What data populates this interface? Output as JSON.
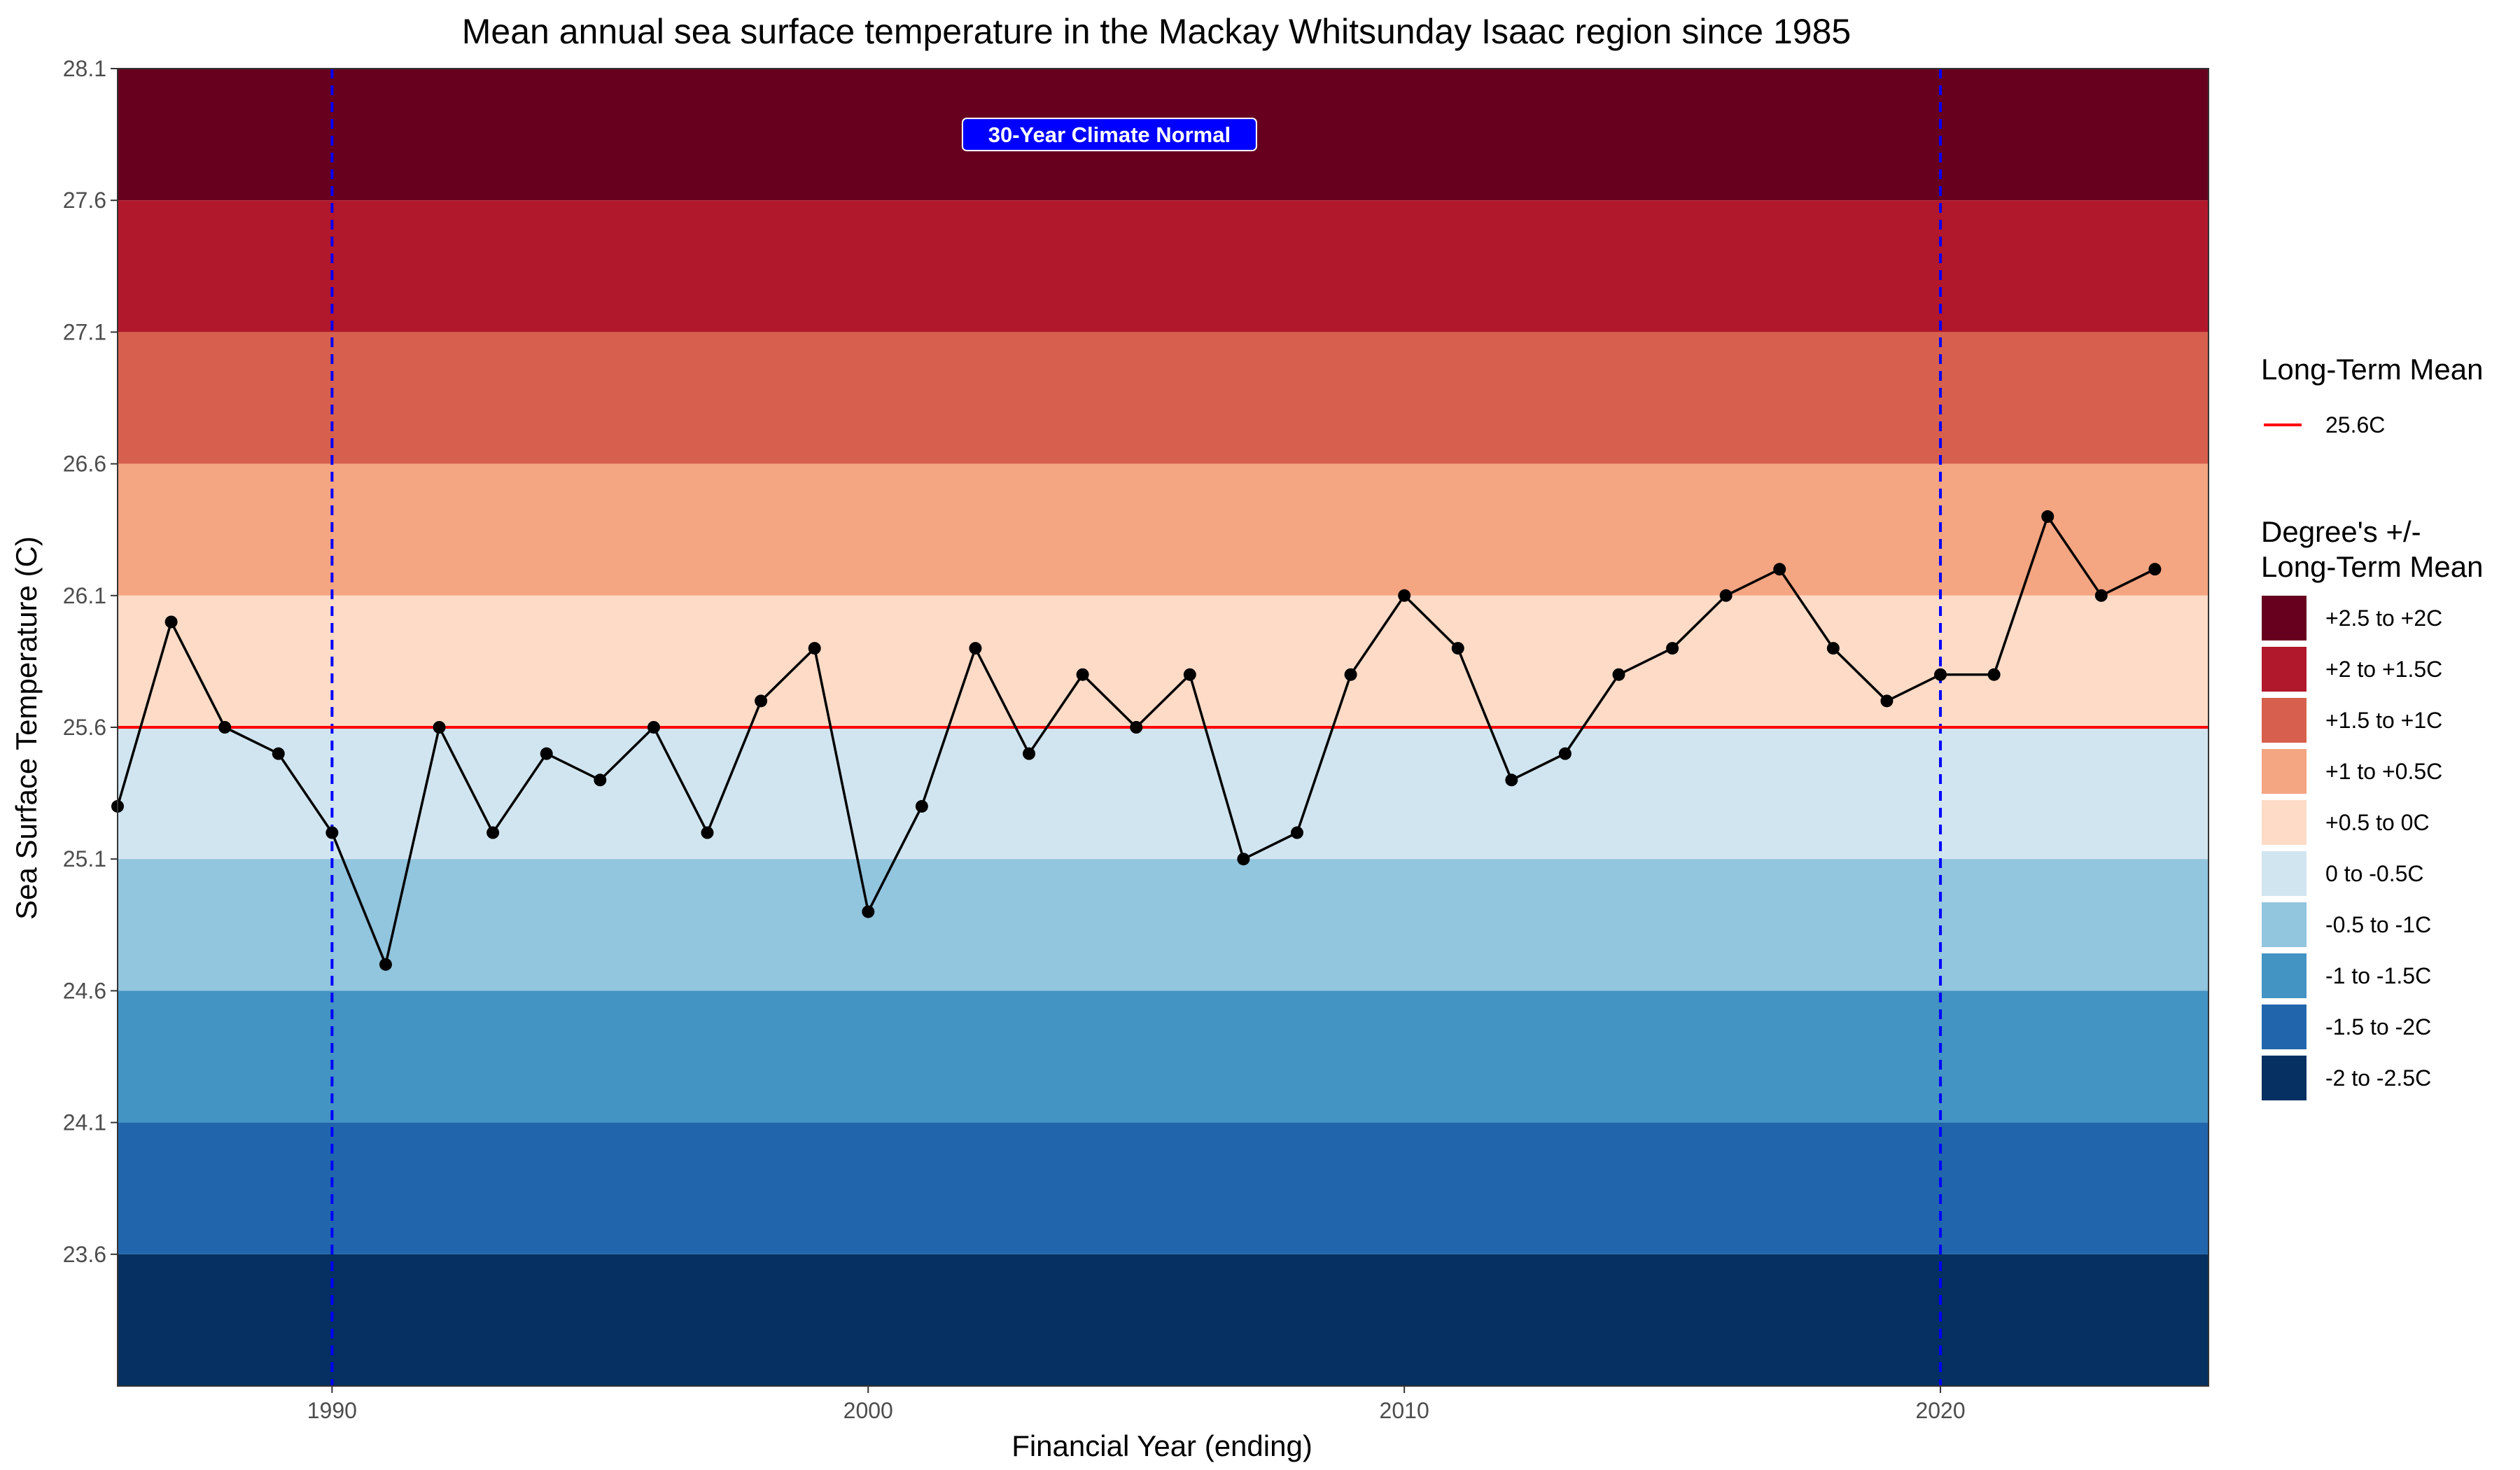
{
  "chart_data": {
    "type": "line",
    "title": "Mean annual sea surface temperature in the Mackay Whitsunday Isaac region since 1985",
    "xlabel": "Financial Year (ending)",
    "ylabel": "Sea Surface Temperature (C)",
    "xlim": [
      1986,
      2025
    ],
    "ylim": [
      23.1,
      28.1
    ],
    "x_ticks": [
      1990,
      2000,
      2010,
      2020
    ],
    "y_ticks": [
      23.6,
      24.1,
      24.6,
      25.1,
      25.6,
      26.1,
      26.6,
      27.1,
      27.6,
      28.1
    ],
    "grid": false,
    "series": [
      {
        "x": [
          1986,
          1987,
          1988,
          1989,
          1990,
          1991,
          1992,
          1993,
          1994,
          1995,
          1996,
          1997,
          1998,
          1999,
          2000,
          2001,
          2002,
          2003,
          2004,
          2005,
          2006,
          2007,
          2008,
          2009,
          2010,
          2011,
          2012,
          2013,
          2014,
          2015,
          2016,
          2017,
          2018,
          2019,
          2020,
          2021,
          2022,
          2023,
          2024
        ],
        "values": [
          25.3,
          26.0,
          25.6,
          25.5,
          25.2,
          24.7,
          25.6,
          25.2,
          25.5,
          25.4,
          25.6,
          25.2,
          25.7,
          25.9,
          24.9,
          25.3,
          25.9,
          25.5,
          25.8,
          25.6,
          25.8,
          25.1,
          25.2,
          25.8,
          26.1,
          25.9,
          25.4,
          25.5,
          25.8,
          25.9,
          26.1,
          26.2,
          25.9,
          25.7,
          25.8,
          25.8,
          26.4,
          26.1,
          26.2
        ],
        "color": "#000000"
      }
    ],
    "long_term_mean": {
      "value": 25.6,
      "color": "#ff0000"
    },
    "bands": [
      {
        "label": "+2.5 to +2C",
        "from": 27.6,
        "to": 28.1,
        "color": "#67001f"
      },
      {
        "label": "+2 to +1.5C",
        "from": 27.1,
        "to": 27.6,
        "color": "#b2182b"
      },
      {
        "label": "+1.5 to +1C",
        "from": 26.6,
        "to": 27.1,
        "color": "#d6604d"
      },
      {
        "label": "+1 to +0.5C",
        "from": 26.1,
        "to": 26.6,
        "color": "#f4a582"
      },
      {
        "label": "+0.5 to 0C",
        "from": 25.6,
        "to": 26.1,
        "color": "#fddbc7"
      },
      {
        "label": "0 to -0.5C",
        "from": 25.1,
        "to": 25.6,
        "color": "#d1e5f0"
      },
      {
        "label": "-0.5 to -1C",
        "from": 24.6,
        "to": 25.1,
        "color": "#92c5de"
      },
      {
        "label": "-1 to -1.5C",
        "from": 24.1,
        "to": 24.6,
        "color": "#4393c3"
      },
      {
        "label": "-1.5 to -2C",
        "from": 23.6,
        "to": 24.1,
        "color": "#2166ac"
      },
      {
        "label": "-2 to -2.5C",
        "from": 23.1,
        "to": 23.6,
        "color": "#053061"
      }
    ],
    "climate_normal_lines": {
      "x": [
        1990,
        2020
      ],
      "color": "#0000ff"
    },
    "annotation": {
      "text": "30-Year Climate Normal",
      "x": 2004.5,
      "y": 27.85,
      "fill": "#0000ff"
    },
    "legend": {
      "placement": "right",
      "mean_title": "Long-Term Mean",
      "mean_label": "25.6C",
      "bands_title_line1": "Degree's +/-",
      "bands_title_line2": "Long-Term Mean"
    }
  }
}
